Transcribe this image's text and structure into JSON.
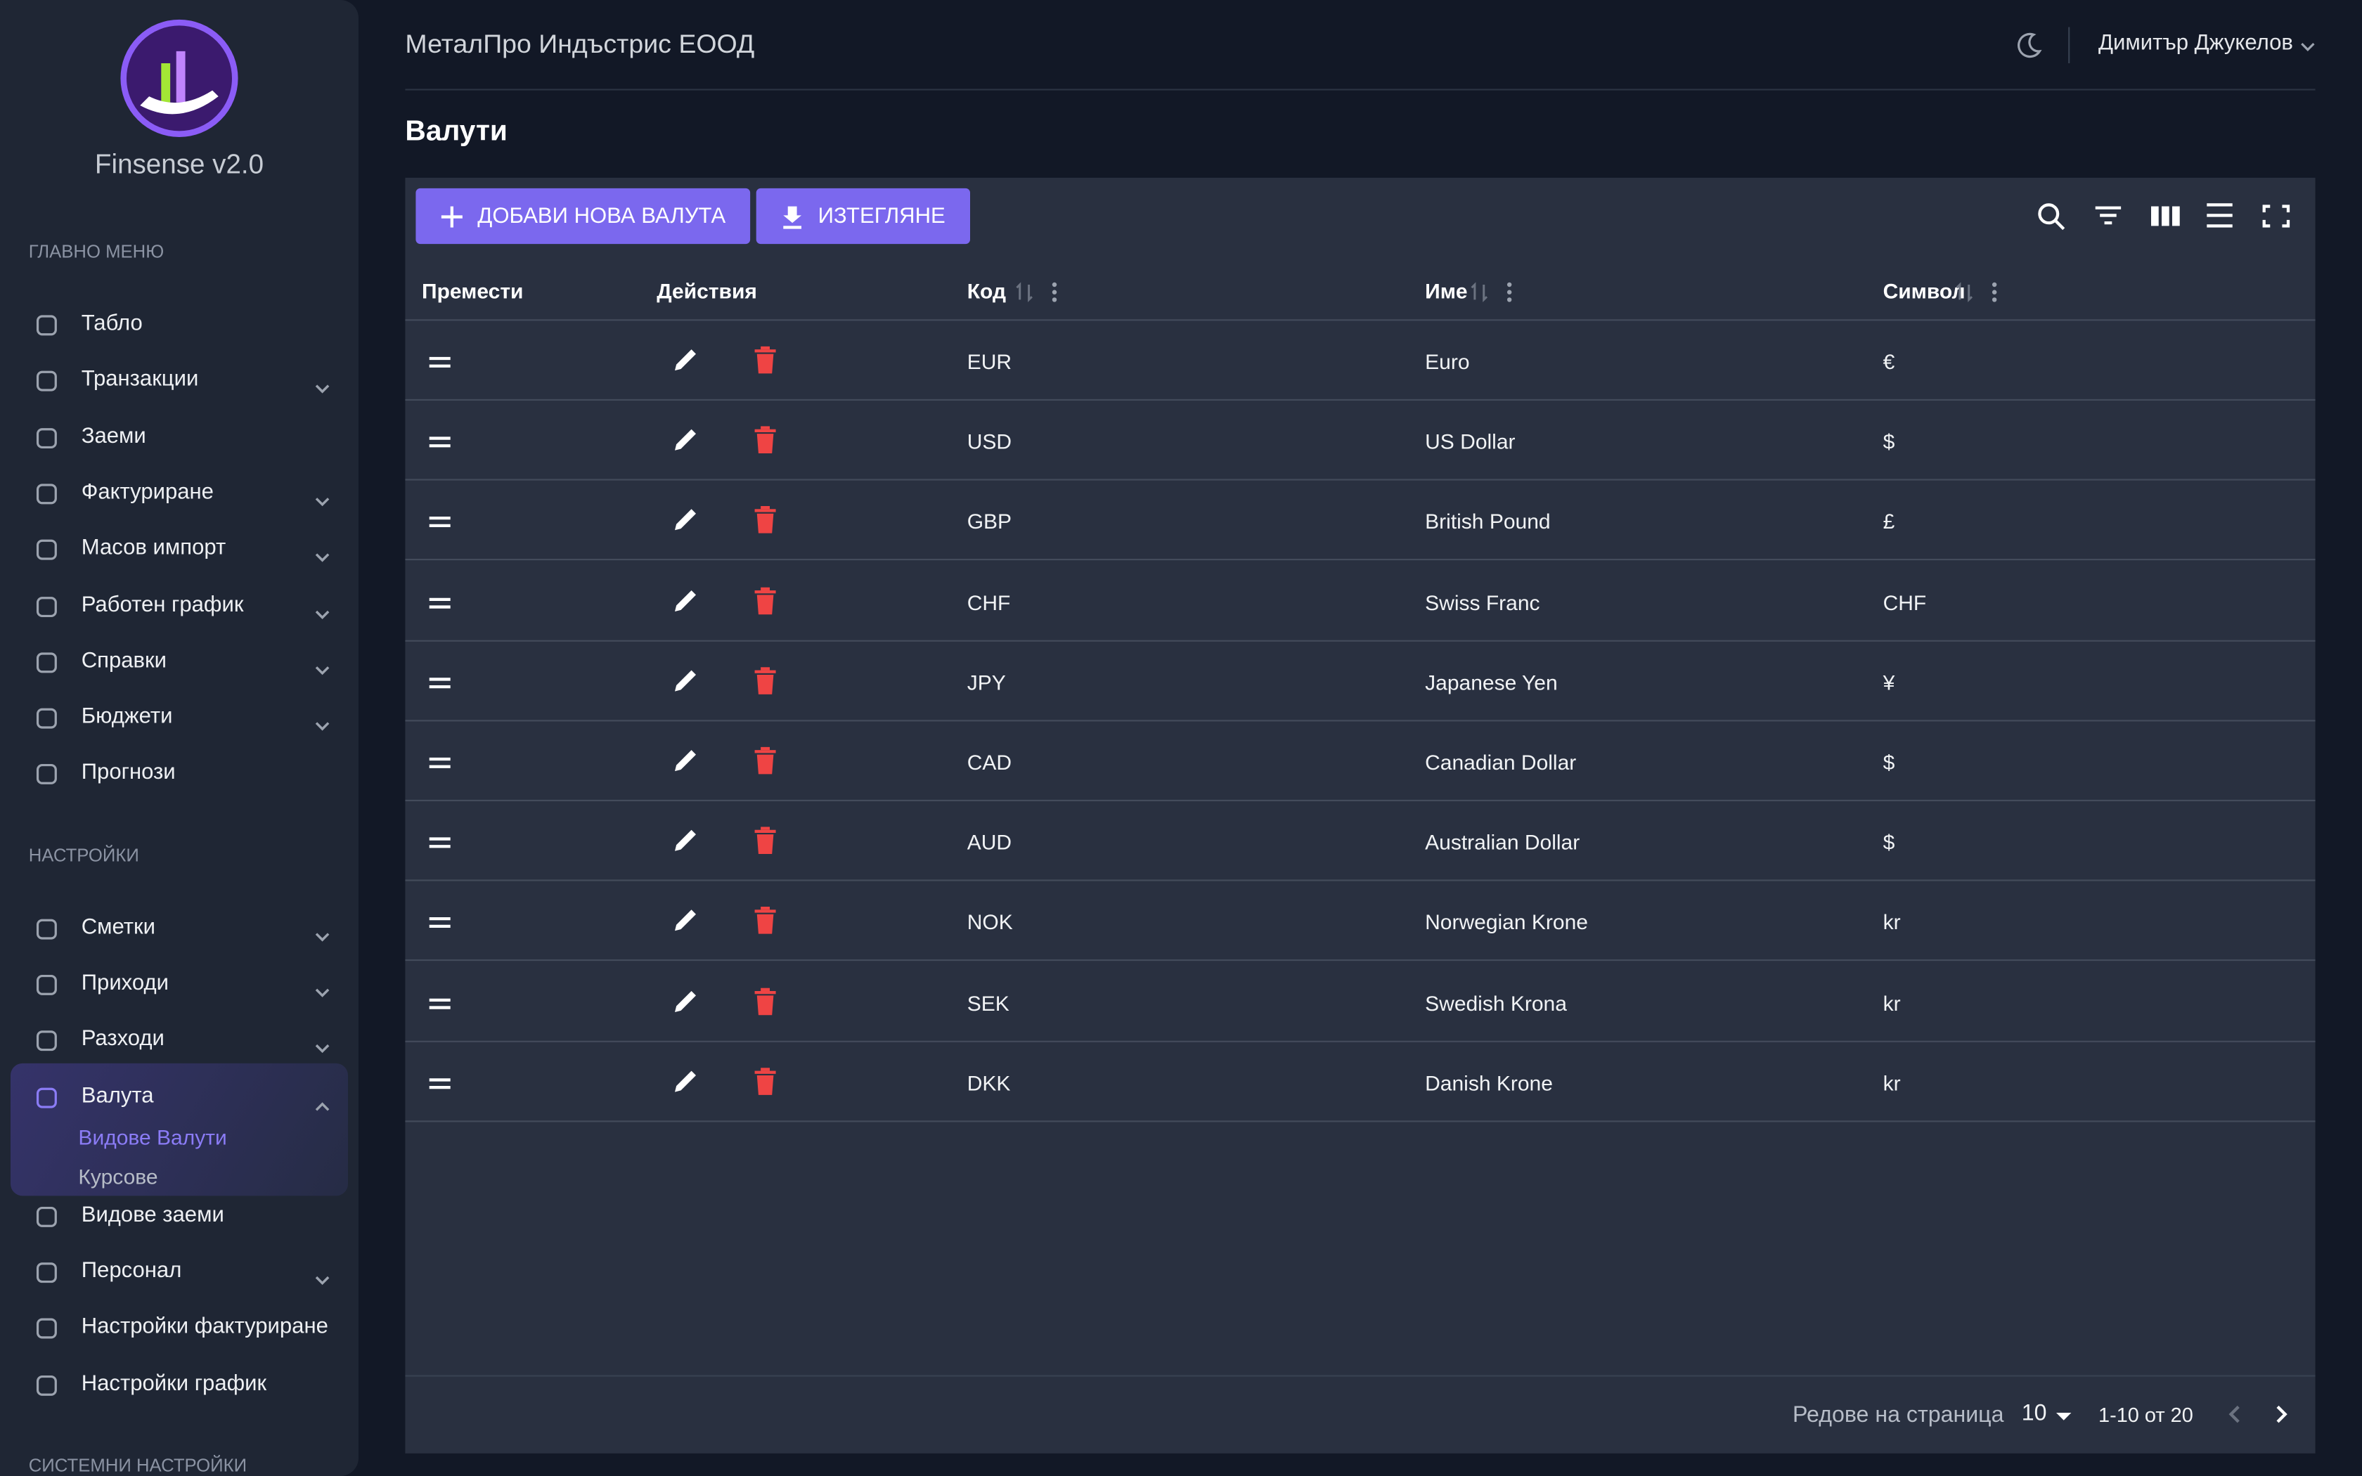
{
  "sidebar": {
    "app_name": "Finsense v2.0",
    "sections": [
      {
        "heading": "ГЛАВНО МЕНЮ",
        "items": [
          {
            "label": "Табло",
            "expandable": false
          },
          {
            "label": "Транзакции",
            "expandable": true
          },
          {
            "label": "Заеми",
            "expandable": false
          },
          {
            "label": "Фактуриране",
            "expandable": true
          },
          {
            "label": "Масов импорт",
            "expandable": true
          },
          {
            "label": "Работен график",
            "expandable": true
          },
          {
            "label": "Справки",
            "expandable": true
          },
          {
            "label": "Бюджети",
            "expandable": true
          },
          {
            "label": "Прогнози",
            "expandable": false
          }
        ]
      },
      {
        "heading": "НАСТРОЙКИ",
        "items": [
          {
            "label": "Сметки",
            "expandable": true
          },
          {
            "label": "Приходи",
            "expandable": true
          },
          {
            "label": "Разходи",
            "expandable": true
          },
          {
            "label": "Валута",
            "expandable": true,
            "expanded": true,
            "children": [
              "Видове Валути",
              "Курсове"
            ],
            "active_child": 0
          },
          {
            "label": "Видове заеми",
            "expandable": false
          },
          {
            "label": "Персонал",
            "expandable": true
          },
          {
            "label": "Настройки фактуриране",
            "expandable": false
          },
          {
            "label": "Настройки график",
            "expandable": false
          }
        ]
      },
      {
        "heading": "СИСТЕМНИ НАСТРОЙКИ",
        "items": []
      }
    ]
  },
  "header": {
    "company": "МеталПро Индъстрис ЕООД",
    "user": "Димитър Джукелов"
  },
  "page_title": "Валути",
  "toolbar": {
    "add_button": "ДОБАВИ НОВА ВАЛУТА",
    "export_button": "ИЗТЕГЛЯНЕ"
  },
  "table": {
    "columns": [
      "Премести",
      "Действия",
      "Код",
      "Име",
      "Символ"
    ],
    "sortable": [
      false,
      false,
      true,
      true,
      true
    ],
    "rows": [
      [
        "EUR",
        "Euro",
        "€"
      ],
      [
        "USD",
        "US Dollar",
        "$"
      ],
      [
        "GBP",
        "British Pound",
        "£"
      ],
      [
        "CHF",
        "Swiss Franc",
        "CHF"
      ],
      [
        "JPY",
        "Japanese Yen",
        "¥"
      ],
      [
        "CAD",
        "Canadian Dollar",
        "$"
      ],
      [
        "AUD",
        "Australian Dollar",
        "$"
      ],
      [
        "NOK",
        "Norwegian Krone",
        "kr"
      ],
      [
        "SEK",
        "Swedish Krona",
        "kr"
      ],
      [
        "DKK",
        "Danish Krone",
        "kr"
      ]
    ]
  },
  "pagination": {
    "rows_per_page_label": "Редове на страница",
    "rows_per_page": 10,
    "range": "1-10 от 20"
  }
}
